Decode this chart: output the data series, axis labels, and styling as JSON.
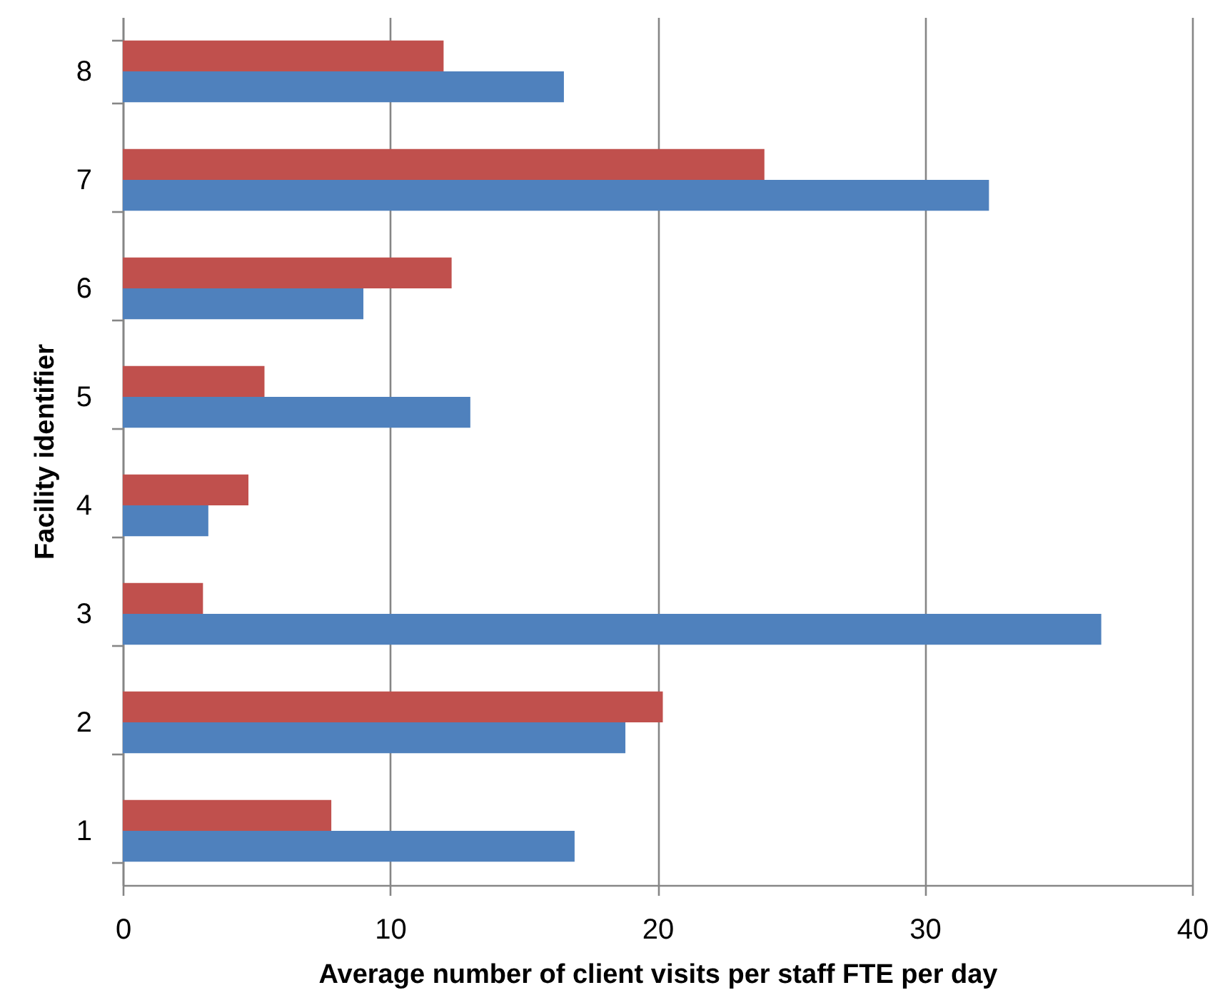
{
  "chart_data": {
    "type": "bar",
    "orientation": "horizontal",
    "xlabel": "Average number of client visits per staff FTE per day",
    "ylabel": "Facility identifier",
    "categories": [
      "8",
      "7",
      "6",
      "5",
      "4",
      "3",
      "2",
      "1"
    ],
    "series": [
      {
        "color": "#4f81bd",
        "values": [
          16.5,
          32.4,
          9.0,
          13.0,
          3.2,
          36.6,
          18.8,
          16.9
        ]
      },
      {
        "color": "#c0504d",
        "values": [
          12.0,
          24.0,
          12.3,
          5.3,
          4.7,
          3.0,
          20.2,
          7.8
        ]
      }
    ],
    "xlim": [
      0,
      40
    ],
    "xticks": [
      0,
      10,
      20,
      30,
      40
    ],
    "grid": "x"
  }
}
